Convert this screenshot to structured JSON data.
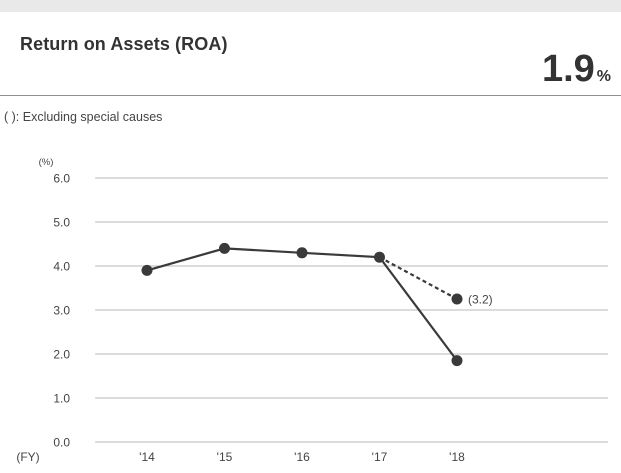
{
  "header": {
    "title": "Return on Assets (ROA)",
    "value": "1.9",
    "unit": "%"
  },
  "note": "( ): Excluding special causes",
  "colors": {
    "line": "#3a3a3a",
    "grid": "#b8b8b8",
    "background": "#ffffff",
    "page": "#e9e9e9"
  },
  "chart_data": {
    "type": "line",
    "title": "",
    "ylabel": "(%)",
    "xlabel": "(FY)",
    "categories": [
      "'14",
      "'15",
      "'16",
      "'17",
      "'18"
    ],
    "ylim": [
      0,
      6
    ],
    "yticks": [
      "0.0",
      "1.0",
      "2.0",
      "3.0",
      "4.0",
      "5.0",
      "6.0"
    ],
    "grid": true,
    "series": [
      {
        "values": [
          3.9,
          4.4,
          4.3,
          4.2,
          1.85
        ],
        "style": "solid"
      },
      {
        "values": [
          null,
          null,
          null,
          4.2,
          3.25
        ],
        "style": "dashed",
        "labels": [
          null,
          null,
          null,
          null,
          "(3.2)"
        ]
      }
    ]
  }
}
